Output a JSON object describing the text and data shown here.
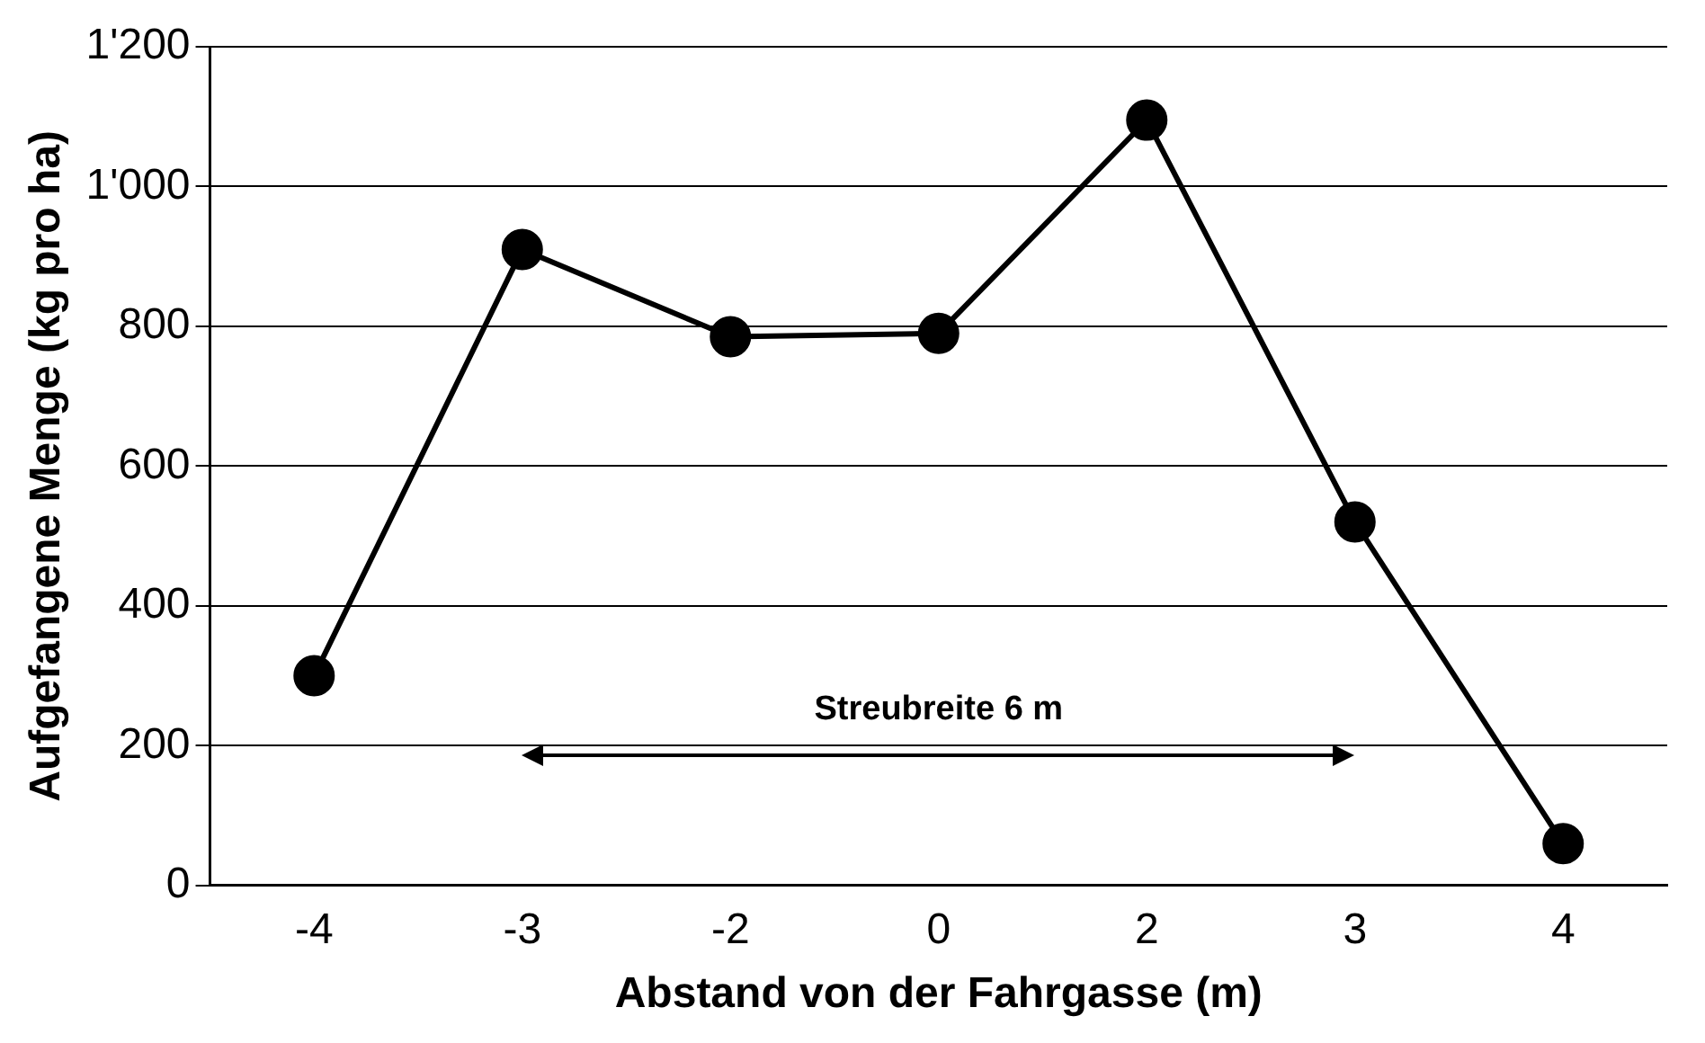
{
  "chart_data": {
    "type": "line",
    "xlabel": "Abstand von der Fahrgasse (m)",
    "ylabel": "Aufgefangene Menge (kg pro ha)",
    "categories": [
      "-4",
      "-3",
      "-2",
      "0",
      "2",
      "3",
      "4"
    ],
    "series": [
      {
        "color": "#000000",
        "values": [
          300,
          910,
          785,
          790,
          1095,
          520,
          60
        ]
      }
    ],
    "ylim": [
      0,
      1200
    ],
    "yticks": [
      0,
      200,
      400,
      600,
      800,
      {
        "value": 1000,
        "label": "1'000"
      },
      {
        "value": 1200,
        "label": "1'200"
      }
    ],
    "grid": "y",
    "legend": false,
    "marker": "circle",
    "line_style": "solid",
    "annotations": [
      "Streubreite 6 m"
    ]
  }
}
